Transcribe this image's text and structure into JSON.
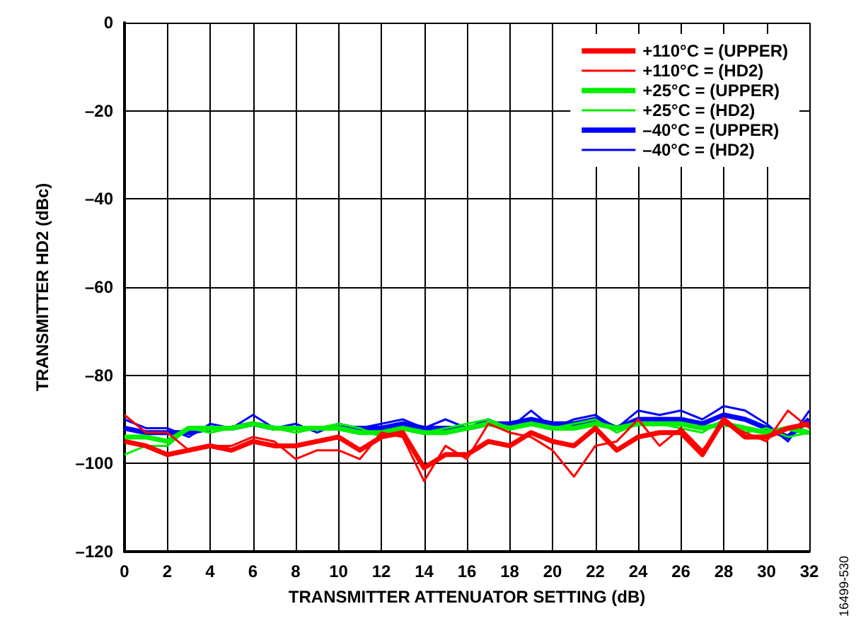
{
  "chart_data": {
    "type": "line",
    "xlabel": "TRANSMITTER ATTENUATOR SETTING (dB)",
    "ylabel": "TRANSMITTER HD2 (dBc)",
    "annotations": [
      "16499-530"
    ],
    "x": [
      0,
      1,
      2,
      3,
      4,
      5,
      6,
      7,
      8,
      9,
      10,
      11,
      12,
      13,
      14,
      15,
      16,
      17,
      18,
      19,
      20,
      21,
      22,
      23,
      24,
      25,
      26,
      27,
      28,
      29,
      30,
      31,
      32
    ],
    "series": [
      {
        "name": "+110°C = (UPPER)",
        "color": "#ff0000",
        "values": [
          -95,
          -96,
          -98,
          -97,
          -96,
          -97,
          -95,
          -96,
          -96,
          -95,
          -94,
          -97,
          -94,
          -93,
          -101,
          -98,
          -98,
          -95,
          -96,
          -93,
          -95,
          -96,
          -92,
          -97,
          -94,
          -93,
          -93,
          -98,
          -90,
          -94,
          -94,
          -92,
          -91
        ]
      },
      {
        "name": "+110°C = (HD2)",
        "color": "#ff0000",
        "values": [
          -89,
          -93,
          -93,
          -97,
          -96,
          -96,
          -94,
          -95,
          -99,
          -97,
          -97,
          -99,
          -93,
          -94,
          -104,
          -96,
          -99,
          -91,
          -93,
          -94,
          -97,
          -103,
          -96,
          -95,
          -90,
          -96,
          -92,
          -97,
          -91,
          -93,
          -95,
          -88,
          -92
        ]
      },
      {
        "name": "+25°C = (UPPER)",
        "color": "#00ee00",
        "values": [
          -94,
          -94,
          -95,
          -92,
          -92,
          -92,
          -91,
          -92,
          -92,
          -92,
          -92,
          -93,
          -93,
          -92,
          -93,
          -93,
          -92,
          -91,
          -92,
          -91,
          -92,
          -92,
          -91,
          -92,
          -91,
          -91,
          -91,
          -92,
          -91,
          -92,
          -93,
          -92,
          -93
        ]
      },
      {
        "name": "+25°C = (HD2)",
        "color": "#00ee00",
        "values": [
          -98,
          -96,
          -96,
          -92,
          -93,
          -92,
          -91,
          -92,
          -93,
          -92,
          -91,
          -92,
          -94,
          -92,
          -93,
          -92,
          -91,
          -90,
          -92,
          -91,
          -92,
          -91,
          -90,
          -93,
          -91,
          -91,
          -92,
          -93,
          -90,
          -93,
          -92,
          -94,
          -93
        ]
      },
      {
        "name": "–40°C = (UPPER)",
        "color": "#0000ff",
        "values": [
          -92,
          -93,
          -93,
          -93,
          -92,
          -92,
          -91,
          -92,
          -92,
          -92,
          -92,
          -92,
          -92,
          -91,
          -92,
          -92,
          -92,
          -91,
          -91,
          -90,
          -91,
          -91,
          -90,
          -92,
          -90,
          -90,
          -90,
          -91,
          -89,
          -90,
          -92,
          -94,
          -90
        ]
      },
      {
        "name": "–40°C = (HD2)",
        "color": "#0000ff",
        "values": [
          -90,
          -92,
          -92,
          -94,
          -91,
          -92,
          -89,
          -92,
          -91,
          -93,
          -91,
          -92,
          -91,
          -90,
          -92,
          -90,
          -92,
          -90,
          -92,
          -88,
          -92,
          -90,
          -89,
          -92,
          -88,
          -89,
          -88,
          -90,
          -87,
          -88,
          -91,
          -95,
          -88
        ]
      }
    ],
    "xlim": [
      0,
      32
    ],
    "xticks": [
      0,
      2,
      4,
      6,
      8,
      10,
      12,
      14,
      16,
      18,
      20,
      22,
      24,
      26,
      28,
      30,
      32
    ],
    "ylim": [
      -120,
      0
    ],
    "yticks": [
      {
        "value": -120,
        "label": "–120"
      },
      {
        "value": -100,
        "label": "–100"
      },
      {
        "value": -80,
        "label": "–80"
      },
      {
        "value": -60,
        "label": "–60"
      },
      {
        "value": -40,
        "label": "–40"
      },
      {
        "value": -20,
        "label": "–20"
      },
      {
        "value": 0,
        "label": "0"
      }
    ],
    "grid": true,
    "legend": "top right",
    "marker": "none",
    "line_style": "solid"
  }
}
